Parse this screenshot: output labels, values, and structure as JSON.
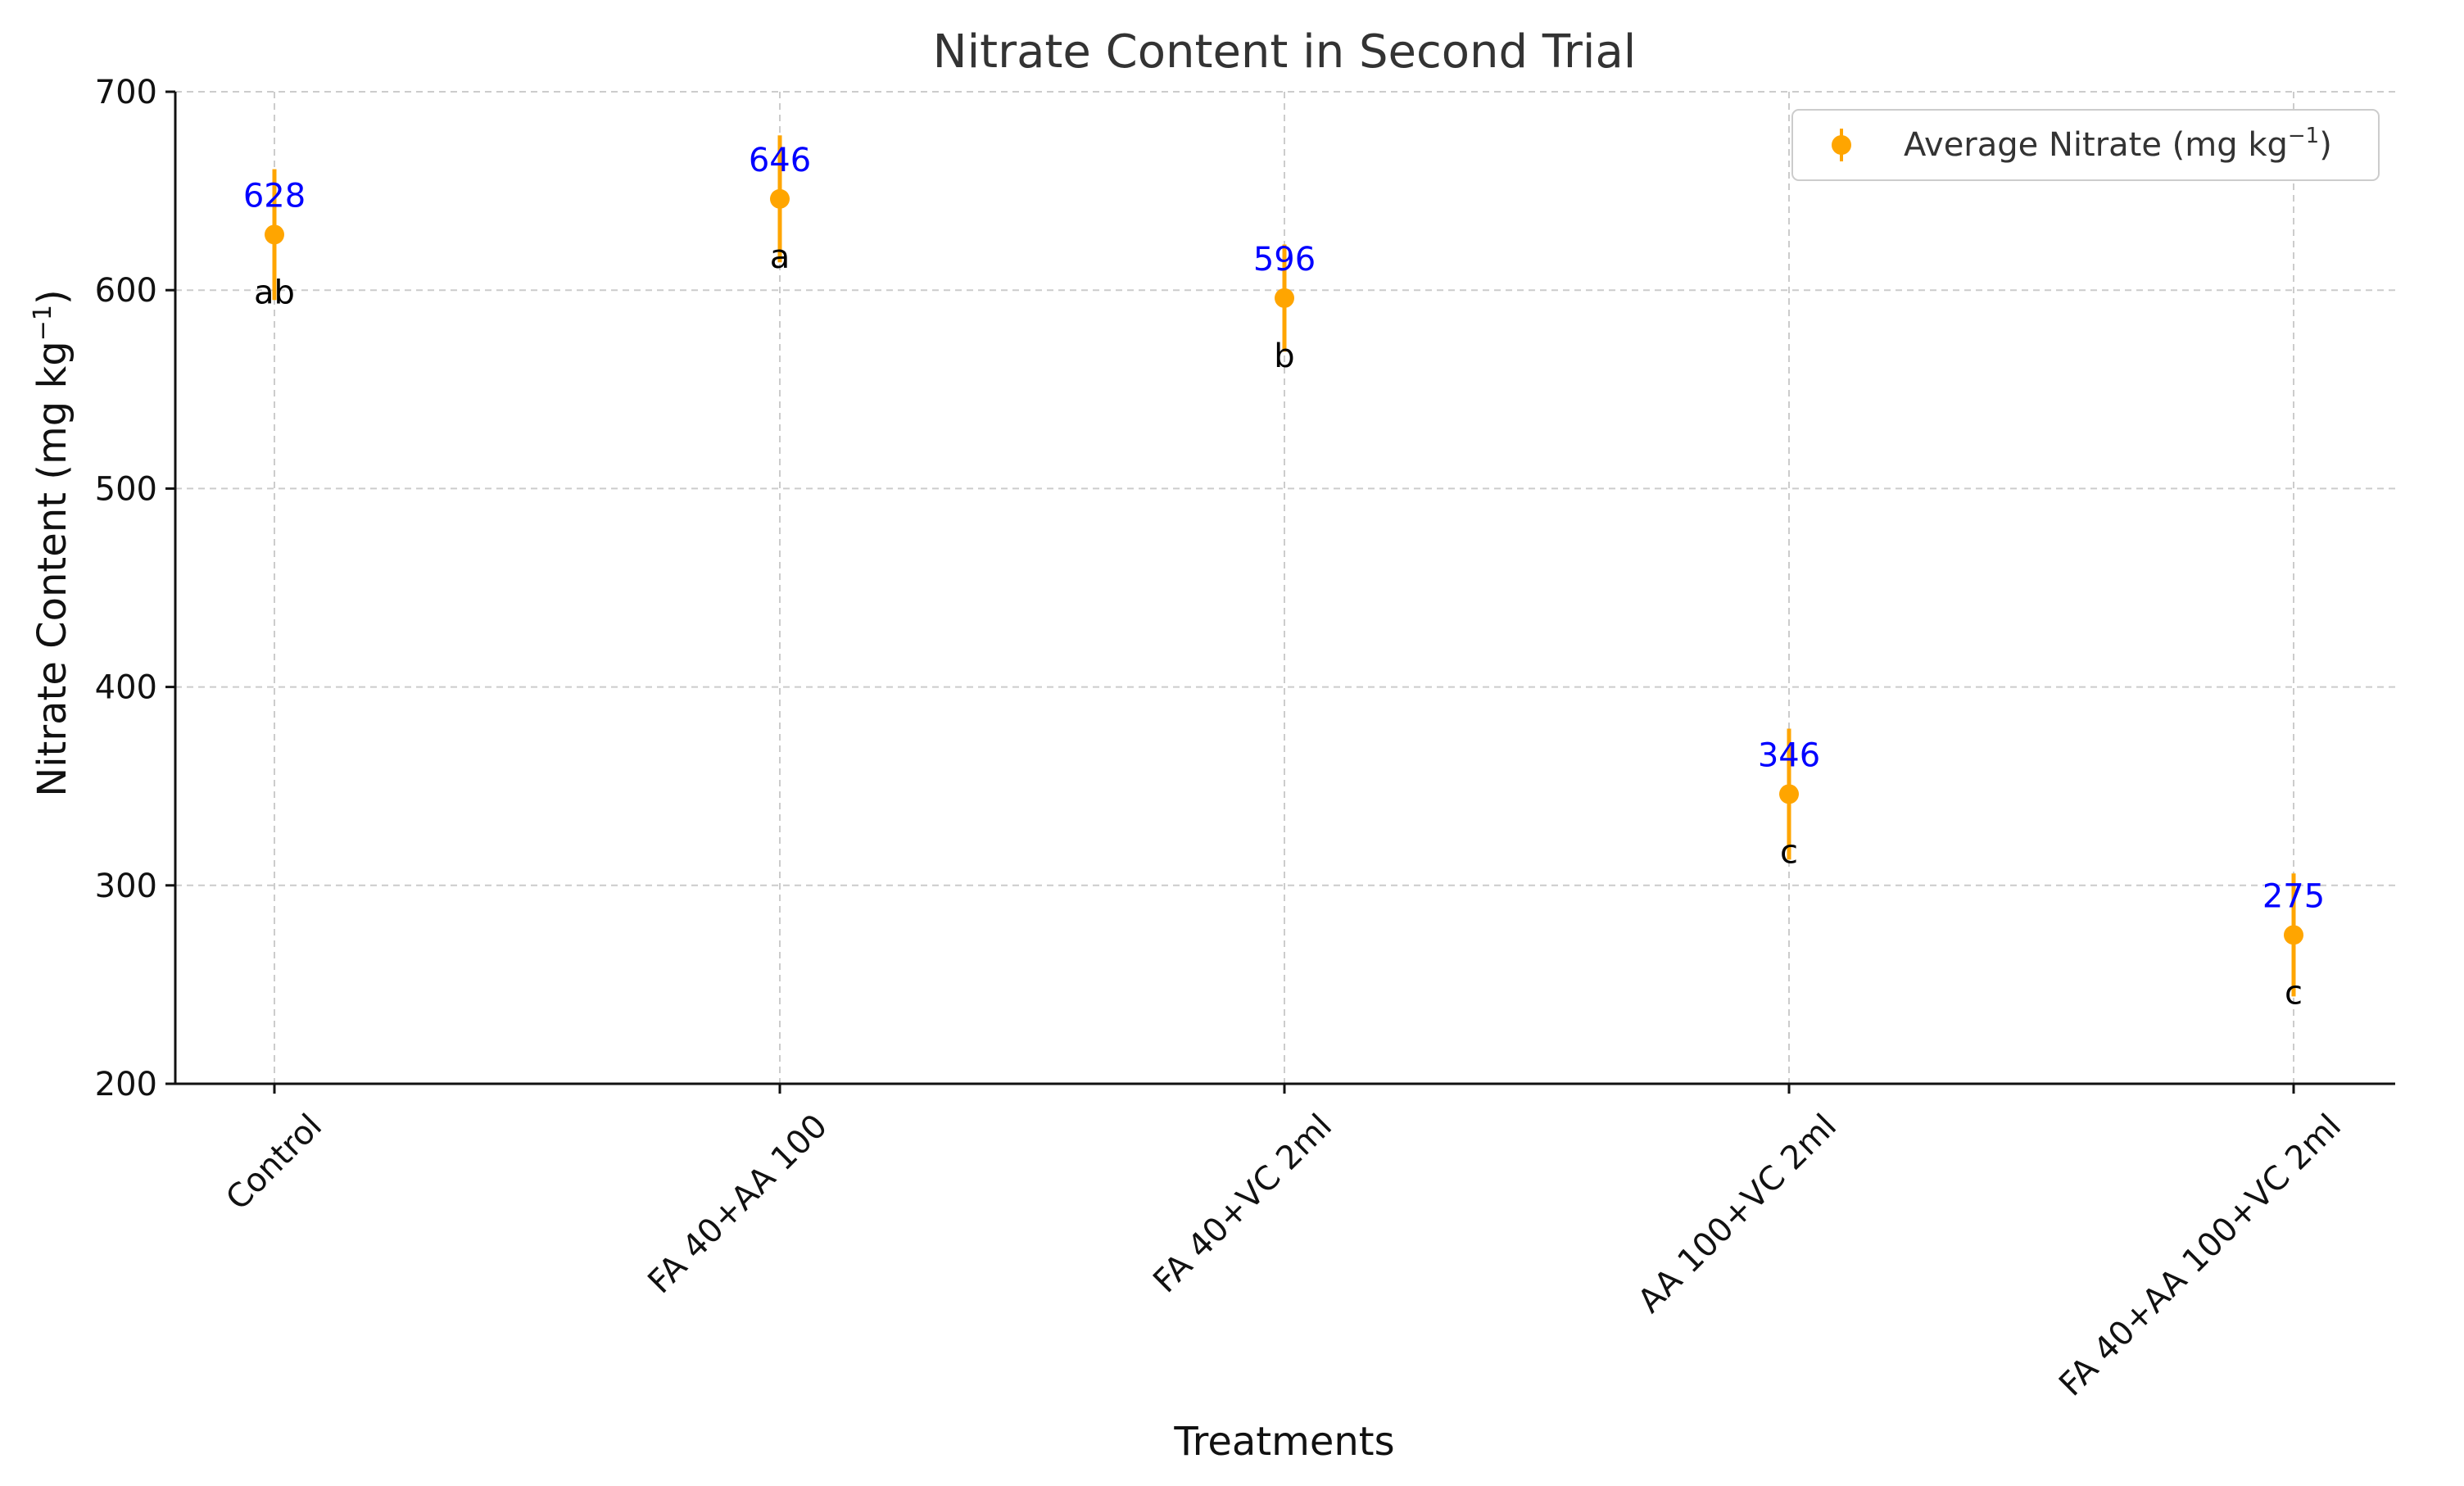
{
  "chart_data": {
    "type": "scatter",
    "title": "Nitrate Content in Second Trial",
    "xlabel": "Treatments",
    "ylabel": "Nitrate Content (mg kg",
    "ylabel_sup": "−1",
    "ylabel_close": ")",
    "ylim": [
      200,
      700
    ],
    "yticks": [
      200,
      300,
      400,
      500,
      600,
      700
    ],
    "ytick_labels": [
      "200",
      "300",
      "400",
      "500",
      "600",
      "700"
    ],
    "grid": true,
    "legend_placement": "top-right",
    "categories": [
      "Control",
      "FA 40+AA 100",
      "FA 40+VC 2ml",
      "AA 100+VC 2ml",
      "FA 40+AA 100+VC 2ml"
    ],
    "series": [
      {
        "name": "Average Nitrate (mg kg",
        "name_sup": "−1",
        "name_close": ")",
        "color": "#FFA500",
        "values": [
          628,
          646,
          596,
          346,
          275
        ],
        "error": [
          33,
          32,
          27,
          33,
          31
        ],
        "value_labels": [
          "628",
          "646",
          "596",
          "346",
          "275"
        ],
        "value_label_color": "#0000FF",
        "significance_letters": [
          "ab",
          "a",
          "b",
          "c",
          "c"
        ]
      }
    ]
  }
}
